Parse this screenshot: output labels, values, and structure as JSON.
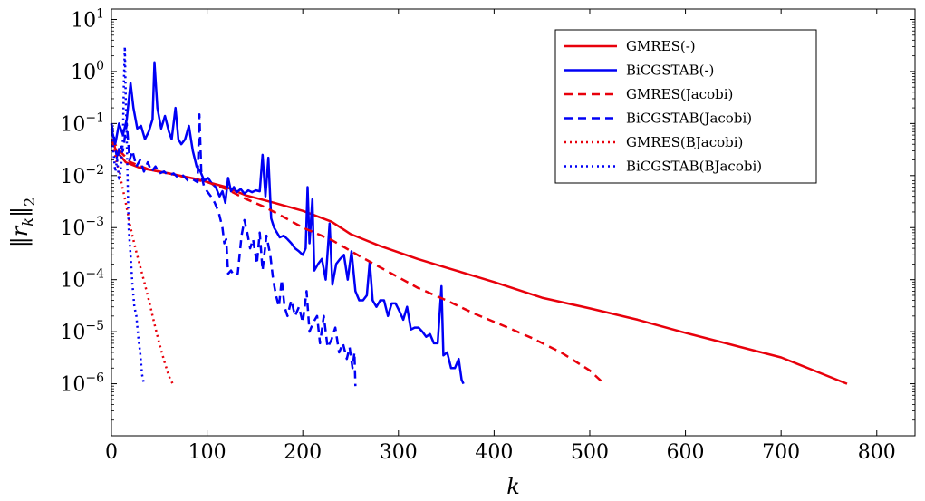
{
  "chart_data": {
    "type": "line",
    "title": "",
    "xlabel": "k",
    "ylabel": "‖r_k‖_2",
    "xlim": [
      0,
      840
    ],
    "ylim_log10": [
      -7.0,
      1.2
    ],
    "yscale": "log",
    "x_ticks": [
      "0",
      "100",
      "200",
      "300",
      "400",
      "500",
      "600",
      "700",
      "800"
    ],
    "x_tick_values": [
      0,
      100,
      200,
      300,
      400,
      500,
      600,
      700,
      800
    ],
    "y_ticks": [
      {
        "base": "10",
        "exp": "1",
        "value": 10
      },
      {
        "base": "10",
        "exp": "0",
        "value": 1
      },
      {
        "base": "10",
        "exp": "−1",
        "value": 0.1
      },
      {
        "base": "10",
        "exp": "−2",
        "value": 0.01
      },
      {
        "base": "10",
        "exp": "−3",
        "value": 0.001
      },
      {
        "base": "10",
        "exp": "−4",
        "value": 0.0001
      },
      {
        "base": "10",
        "exp": "−5",
        "value": 1e-05
      },
      {
        "base": "10",
        "exp": "−6",
        "value": 1e-06
      }
    ],
    "legend_position": "top-right",
    "series": [
      {
        "name": "GMRES(-)",
        "color": "#e8000b",
        "style": "solid",
        "points": [
          [
            0,
            0.05
          ],
          [
            5,
            0.03
          ],
          [
            15,
            0.018
          ],
          [
            30,
            0.014
          ],
          [
            60,
            0.011
          ],
          [
            90,
            0.0085
          ],
          [
            120,
            0.006
          ],
          [
            140,
            0.0042
          ],
          [
            170,
            0.003
          ],
          [
            200,
            0.0021
          ],
          [
            230,
            0.0013
          ],
          [
            250,
            0.00075
          ],
          [
            280,
            0.00045
          ],
          [
            320,
            0.00025
          ],
          [
            350,
            0.00017
          ],
          [
            400,
            9e-05
          ],
          [
            450,
            4.5e-05
          ],
          [
            500,
            2.8e-05
          ],
          [
            550,
            1.7e-05
          ],
          [
            600,
            9.5e-06
          ],
          [
            650,
            5.5e-06
          ],
          [
            700,
            3.2e-06
          ],
          [
            769,
            1e-06
          ]
        ]
      },
      {
        "name": "BiCGSTAB(-)",
        "color": "#0000f5",
        "style": "solid",
        "points": [
          [
            0,
            0.08
          ],
          [
            4,
            0.04
          ],
          [
            8,
            0.1
          ],
          [
            12,
            0.06
          ],
          [
            16,
            0.12
          ],
          [
            20,
            0.6
          ],
          [
            23,
            0.2
          ],
          [
            27,
            0.08
          ],
          [
            31,
            0.09
          ],
          [
            35,
            0.05
          ],
          [
            39,
            0.07
          ],
          [
            43,
            0.12
          ],
          [
            45,
            1.5
          ],
          [
            48,
            0.2
          ],
          [
            52,
            0.08
          ],
          [
            56,
            0.14
          ],
          [
            60,
            0.07
          ],
          [
            63,
            0.05
          ],
          [
            67,
            0.2
          ],
          [
            70,
            0.05
          ],
          [
            73,
            0.04
          ],
          [
            77,
            0.05
          ],
          [
            81,
            0.09
          ],
          [
            85,
            0.03
          ],
          [
            89,
            0.015
          ],
          [
            93,
            0.012
          ],
          [
            97,
            0.008
          ],
          [
            101,
            0.009
          ],
          [
            105,
            0.007
          ],
          [
            109,
            0.006
          ],
          [
            113,
            0.004
          ],
          [
            116,
            0.005
          ],
          [
            119,
            0.003
          ],
          [
            122,
            0.009
          ],
          [
            125,
            0.005
          ],
          [
            128,
            0.006
          ],
          [
            131,
            0.0048
          ],
          [
            135,
            0.0055
          ],
          [
            139,
            0.0045
          ],
          [
            143,
            0.0052
          ],
          [
            147,
            0.0048
          ],
          [
            151,
            0.0052
          ],
          [
            155,
            0.005
          ],
          [
            158,
            0.025
          ],
          [
            161,
            0.004
          ],
          [
            164,
            0.022
          ],
          [
            167,
            0.0015
          ],
          [
            170,
            0.001
          ],
          [
            173,
            0.0008
          ],
          [
            176,
            0.00065
          ],
          [
            180,
            0.0007
          ],
          [
            184,
            0.0006
          ],
          [
            188,
            0.0005
          ],
          [
            192,
            0.0004
          ],
          [
            196,
            0.00035
          ],
          [
            200,
            0.0003
          ],
          [
            203,
            0.0004
          ],
          [
            205,
            0.006
          ],
          [
            207,
            0.0005
          ],
          [
            210,
            0.0035
          ],
          [
            212,
            0.00015
          ],
          [
            216,
            0.0002
          ],
          [
            220,
            0.00025
          ],
          [
            224,
            0.0001
          ],
          [
            228,
            0.0012
          ],
          [
            231,
            8e-05
          ],
          [
            235,
            0.0002
          ],
          [
            239,
            0.00025
          ],
          [
            243,
            0.0003
          ],
          [
            247,
            0.0001
          ],
          [
            251,
            0.00035
          ],
          [
            255,
            6e-05
          ],
          [
            259,
            4e-05
          ],
          [
            263,
            4e-05
          ],
          [
            267,
            5e-05
          ],
          [
            270,
            0.00022
          ],
          [
            273,
            4e-05
          ],
          [
            277,
            3e-05
          ],
          [
            281,
            4e-05
          ],
          [
            285,
            4e-05
          ],
          [
            289,
            2e-05
          ],
          [
            293,
            3.5e-05
          ],
          [
            297,
            3.5e-05
          ],
          [
            301,
            2.5e-05
          ],
          [
            305,
            1.7e-05
          ],
          [
            309,
            3e-05
          ],
          [
            313,
            1.1e-05
          ],
          [
            317,
            1.2e-05
          ],
          [
            321,
            1.2e-05
          ],
          [
            325,
            1e-05
          ],
          [
            329,
            8e-06
          ],
          [
            333,
            9e-06
          ],
          [
            337,
            6e-06
          ],
          [
            341,
            6e-06
          ],
          [
            345,
            7.5e-05
          ],
          [
            347,
            3.5e-06
          ],
          [
            351,
            4e-06
          ],
          [
            355,
            2e-06
          ],
          [
            359,
            2e-06
          ],
          [
            363,
            3e-06
          ],
          [
            366,
            1.2e-06
          ],
          [
            368,
            1e-06
          ]
        ]
      },
      {
        "name": "GMRES(Jacobi)",
        "color": "#e8000b",
        "style": "dashed",
        "points": [
          [
            0,
            0.05
          ],
          [
            10,
            0.028
          ],
          [
            20,
            0.018
          ],
          [
            40,
            0.013
          ],
          [
            60,
            0.011
          ],
          [
            80,
            0.009
          ],
          [
            100,
            0.0075
          ],
          [
            120,
            0.0055
          ],
          [
            140,
            0.0036
          ],
          [
            160,
            0.0025
          ],
          [
            180,
            0.0016
          ],
          [
            200,
            0.001
          ],
          [
            230,
            0.00058
          ],
          [
            260,
            0.00028
          ],
          [
            290,
            0.00014
          ],
          [
            320,
            7e-05
          ],
          [
            350,
            4e-05
          ],
          [
            380,
            2.2e-05
          ],
          [
            410,
            1.3e-05
          ],
          [
            440,
            7.5e-06
          ],
          [
            470,
            4e-06
          ],
          [
            500,
            1.8e-06
          ],
          [
            515,
            1e-06
          ]
        ]
      },
      {
        "name": "BiCGSTAB(Jacobi)",
        "color": "#0000f5",
        "style": "dashed",
        "points": [
          [
            0,
            0.1
          ],
          [
            3,
            0.05
          ],
          [
            6,
            0.02
          ],
          [
            9,
            0.04
          ],
          [
            12,
            0.03
          ],
          [
            16,
            0.1
          ],
          [
            19,
            0.02
          ],
          [
            22,
            0.03
          ],
          [
            26,
            0.015
          ],
          [
            30,
            0.02
          ],
          [
            34,
            0.012
          ],
          [
            38,
            0.018
          ],
          [
            42,
            0.012
          ],
          [
            46,
            0.015
          ],
          [
            50,
            0.011
          ],
          [
            55,
            0.012
          ],
          [
            60,
            0.01
          ],
          [
            65,
            0.011
          ],
          [
            70,
            0.009
          ],
          [
            75,
            0.01
          ],
          [
            80,
            0.008
          ],
          [
            85,
            0.0085
          ],
          [
            90,
            0.0075
          ],
          [
            92,
            0.15
          ],
          [
            94,
            0.01
          ],
          [
            97,
            0.006
          ],
          [
            100,
            0.005
          ],
          [
            104,
            0.004
          ],
          [
            108,
            0.003
          ],
          [
            112,
            0.002
          ],
          [
            116,
            0.001
          ],
          [
            118,
            0.0005
          ],
          [
            120,
            0.0006
          ],
          [
            122,
            0.00013
          ],
          [
            125,
            0.00015
          ],
          [
            128,
            0.00012
          ],
          [
            132,
            0.00013
          ],
          [
            136,
            0.0007
          ],
          [
            139,
            0.0014
          ],
          [
            142,
            0.0008
          ],
          [
            145,
            0.0004
          ],
          [
            148,
            0.0006
          ],
          [
            152,
            0.0002
          ],
          [
            155,
            0.0008
          ],
          [
            158,
            0.00015
          ],
          [
            162,
            0.0007
          ],
          [
            166,
            0.0003
          ],
          [
            169,
            0.0001
          ],
          [
            172,
            5e-05
          ],
          [
            175,
            3e-05
          ],
          [
            178,
            0.0001
          ],
          [
            181,
            3e-05
          ],
          [
            184,
            2e-05
          ],
          [
            188,
            4e-05
          ],
          [
            192,
            2e-05
          ],
          [
            196,
            3e-05
          ],
          [
            200,
            1.5e-05
          ],
          [
            204,
            6e-05
          ],
          [
            207,
            1e-05
          ],
          [
            211,
            1.5e-05
          ],
          [
            215,
            2e-05
          ],
          [
            218,
            6e-06
          ],
          [
            222,
            2e-05
          ],
          [
            226,
            5e-06
          ],
          [
            230,
            7e-06
          ],
          [
            234,
            1.2e-05
          ],
          [
            238,
            4e-06
          ],
          [
            242,
            6e-06
          ],
          [
            246,
            3e-06
          ],
          [
            249,
            5e-06
          ],
          [
            252,
            2e-06
          ],
          [
            254,
            4e-06
          ],
          [
            255,
            9e-07
          ]
        ]
      },
      {
        "name": "GMRES(BJacobi)",
        "color": "#e8000b",
        "style": "dotted",
        "points": [
          [
            0,
            0.05
          ],
          [
            5,
            0.02
          ],
          [
            10,
            0.008
          ],
          [
            15,
            0.003
          ],
          [
            20,
            0.001
          ],
          [
            25,
            0.0004
          ],
          [
            30,
            0.00018
          ],
          [
            35,
            8e-05
          ],
          [
            40,
            3.5e-05
          ],
          [
            45,
            1.4e-05
          ],
          [
            50,
            6e-06
          ],
          [
            55,
            2.8e-06
          ],
          [
            60,
            1.4e-06
          ],
          [
            64,
            1e-06
          ]
        ]
      },
      {
        "name": "BiCGSTAB(BJacobi)",
        "color": "#0000f5",
        "style": "dotted",
        "points": [
          [
            0,
            0.1
          ],
          [
            2,
            0.03
          ],
          [
            4,
            0.012
          ],
          [
            6,
            0.02
          ],
          [
            8,
            0.008
          ],
          [
            10,
            0.015
          ],
          [
            12,
            0.05
          ],
          [
            13,
            0.6
          ],
          [
            14,
            3.0
          ],
          [
            15,
            0.3
          ],
          [
            16,
            0.05
          ],
          [
            18,
            0.001
          ],
          [
            20,
            0.0003
          ],
          [
            22,
            8e-05
          ],
          [
            24,
            3e-05
          ],
          [
            26,
            2e-05
          ],
          [
            28,
            8e-06
          ],
          [
            30,
            4e-06
          ],
          [
            32,
            1.5e-06
          ],
          [
            34,
            1e-06
          ]
        ]
      }
    ]
  }
}
